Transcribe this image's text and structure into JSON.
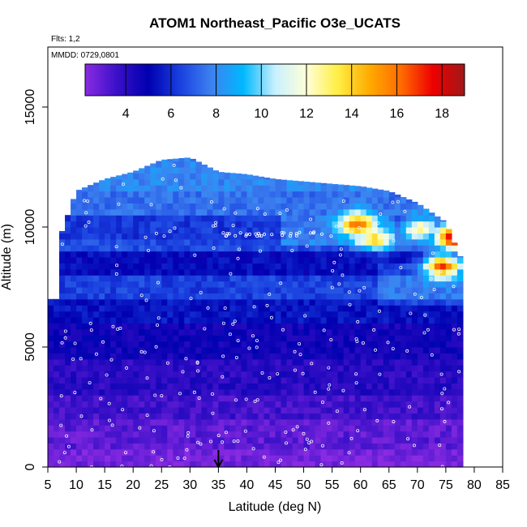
{
  "chart_data": {
    "type": "heatmap",
    "title": "ATOM1 Northeast_Pacific O3e_UCATS",
    "subtitle_flights": "Flts: 1,2",
    "subtitle_dates": "MMDD: 0729,0801",
    "xlabel": "Latitude (deg N)",
    "ylabel": "Altitude (m)",
    "xlim": [
      5,
      85
    ],
    "ylim": [
      0,
      17500
    ],
    "xticks": [
      "5",
      "10",
      "15",
      "20",
      "25",
      "30",
      "35",
      "40",
      "45",
      "50",
      "55",
      "60",
      "65",
      "70",
      "75",
      "80",
      "85"
    ],
    "yticks": [
      "0",
      "5000",
      "10000",
      "15000"
    ],
    "colorbar": {
      "range": [
        2.2,
        19.0
      ],
      "ticks": [
        "4",
        "6",
        "8",
        "10",
        "12",
        "14",
        "16",
        "18"
      ],
      "stops": [
        "#8a2be2",
        "#3a10c8",
        "#0000b0",
        "#1a40e0",
        "#3d82f0",
        "#00b8ff",
        "#c8f0ff",
        "#ffffd8",
        "#ffee44",
        "#ffaa00",
        "#ff6a00",
        "#ee0000",
        "#a01818"
      ]
    },
    "marker_latitude": 35,
    "profile": {
      "lat": [
        7,
        10,
        15,
        20,
        25,
        30,
        35,
        40,
        45,
        50,
        55,
        60,
        65,
        70,
        75,
        78
      ],
      "top": [
        9500,
        11500,
        12000,
        12300,
        12800,
        12900,
        12300,
        12200,
        12000,
        11900,
        11800,
        11700,
        11500,
        11000,
        10200,
        8500
      ]
    },
    "altitude_bands": [
      {
        "from": 0,
        "to": 800,
        "value": 2.6
      },
      {
        "from": 800,
        "to": 2000,
        "value": 3.0
      },
      {
        "from": 2000,
        "to": 3000,
        "value": 3.5
      },
      {
        "from": 3000,
        "to": 4500,
        "value": 4.0
      },
      {
        "from": 4500,
        "to": 6000,
        "value": 4.6
      },
      {
        "from": 6000,
        "to": 7000,
        "value": 5.4
      },
      {
        "from": 7000,
        "to": 8000,
        "value": 6.4
      },
      {
        "from": 8000,
        "to": 9000,
        "value": 5.2
      },
      {
        "from": 9000,
        "to": 9500,
        "value": 6.6
      },
      {
        "from": 9500,
        "to": 10500,
        "value": 6.2
      },
      {
        "from": 10500,
        "to": 11500,
        "value": 7.4
      },
      {
        "from": 11500,
        "to": 13000,
        "value": 7.9
      }
    ],
    "hotspots": [
      {
        "lat": 59,
        "alt": 10000,
        "value": 14.5
      },
      {
        "lat": 70,
        "alt": 9800,
        "value": 12.5
      },
      {
        "lat": 74,
        "alt": 8300,
        "value": 16.5
      },
      {
        "lat": 76,
        "alt": 9500,
        "value": 18.5
      },
      {
        "lat": 62,
        "alt": 9400,
        "value": 12.0
      }
    ]
  }
}
